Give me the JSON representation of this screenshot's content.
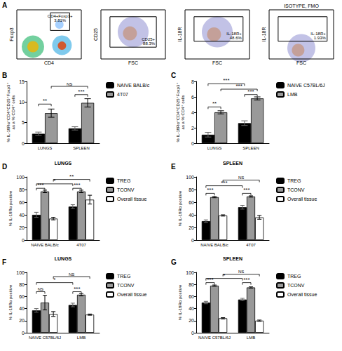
{
  "chart_data": [
    {
      "type": "flow",
      "panel": "A",
      "plots": [
        {
          "xlabel": "CD4",
          "ylabel": "Foxp3",
          "gate": "CD4+Foxp3+",
          "percent": "3.81%"
        },
        {
          "xlabel": "FSC",
          "ylabel": "CD25",
          "gate": "CD25+",
          "percent": "88.3%"
        },
        {
          "xlabel": "FSC",
          "ylabel": "IL-18R",
          "gate": "IL-18R+",
          "percent": "48.6%"
        },
        {
          "title": "ISOTYPE, FMO",
          "xlabel": "FSC",
          "ylabel": "IL-18R",
          "gate": "IL-18R+",
          "percent": "1.93%"
        }
      ]
    },
    {
      "type": "bar",
      "panel": "B",
      "ylabel": "% IL-18Rα⁺CD4⁺CD25⁺Foxp3⁺\nas a % CD4⁺ cells",
      "categories": [
        "LUNGS",
        "SPLEEN"
      ],
      "series": [
        {
          "name": "NAIVE BALB/c",
          "color": "#000000",
          "values": [
            2.3,
            3.6
          ],
          "errors": [
            0.4,
            0.4
          ]
        },
        {
          "name": "4T07",
          "color": "#999999",
          "values": [
            7.3,
            9.8
          ],
          "errors": [
            1.0,
            1.0
          ]
        }
      ],
      "ylim": [
        0,
        15
      ],
      "yticks": [
        0,
        5,
        10,
        15
      ],
      "significance": [
        {
          "from": [
            0,
            0
          ],
          "to": [
            0,
            1
          ],
          "y": 9.5,
          "label": "**"
        },
        {
          "from": [
            1,
            0
          ],
          "to": [
            1,
            1
          ],
          "y": 11.8,
          "label": "***"
        },
        {
          "from": [
            0,
            1
          ],
          "to": [
            1,
            1
          ],
          "y": 13.8,
          "label": "NS"
        }
      ]
    },
    {
      "type": "bar",
      "panel": "C",
      "ylabel": "% IL-18Rα⁺CD4⁺CD25⁺Foxp3⁺\nas a % CD4⁺ cells",
      "categories": [
        "LUNGS",
        "SPLEEN"
      ],
      "series": [
        {
          "name": "NAIVE C57BL/6J",
          "color": "#000000",
          "values": [
            1.1,
            2.6
          ],
          "errors": [
            0.3,
            0.3
          ]
        },
        {
          "name": "LMB",
          "color": "#999999",
          "values": [
            4.0,
            5.8
          ],
          "errors": [
            0.2,
            0.2
          ]
        }
      ],
      "ylim": [
        0,
        8
      ],
      "yticks": [
        0,
        2,
        4,
        6,
        8
      ],
      "significance": [
        {
          "from": [
            0,
            0
          ],
          "to": [
            0,
            1
          ],
          "y": 4.7,
          "label": "**"
        },
        {
          "from": [
            1,
            0
          ],
          "to": [
            1,
            1
          ],
          "y": 6.3,
          "label": "***"
        },
        {
          "from": [
            0,
            1
          ],
          "to": [
            1,
            1
          ],
          "y": 7.0,
          "label": "***"
        },
        {
          "from": [
            0,
            0
          ],
          "to": [
            1,
            0
          ],
          "y": 7.7,
          "label": "***"
        }
      ]
    },
    {
      "type": "bar",
      "panel": "D",
      "title": "LUNGS",
      "ylabel": "% IL-18Rα positive",
      "categories": [
        "NAIVE BALB/c",
        "4T07"
      ],
      "series": [
        {
          "name": "TREG",
          "color": "#000000",
          "values": [
            40,
            53
          ],
          "errors": [
            4,
            3
          ]
        },
        {
          "name": "TCONV",
          "color": "#999999",
          "values": [
            77,
            77
          ],
          "errors": [
            2,
            2
          ]
        },
        {
          "name": "Overall tissue",
          "color": "#ffffff",
          "values": [
            34,
            64
          ],
          "errors": [
            2,
            7
          ]
        }
      ],
      "ylim": [
        0,
        100
      ],
      "yticks": [
        0,
        20,
        40,
        60,
        80,
        100
      ],
      "significance": [
        {
          "from": [
            0,
            0
          ],
          "to": [
            0,
            1
          ],
          "y": 82,
          "label": "***"
        },
        {
          "from": [
            1,
            0
          ],
          "to": [
            1,
            1
          ],
          "y": 82,
          "label": "***"
        },
        {
          "from": [
            0,
            0
          ],
          "to": [
            1,
            0
          ],
          "y": 89,
          "label": "*"
        },
        {
          "from": [
            0,
            2
          ],
          "to": [
            1,
            2
          ],
          "y": 96,
          "label": "**"
        }
      ]
    },
    {
      "type": "bar",
      "panel": "E",
      "title": "SPLEEN",
      "ylabel": "% IL-18Rα positive",
      "categories": [
        "NAIVE BALB/c",
        "4T07"
      ],
      "series": [
        {
          "name": "TREG",
          "color": "#000000",
          "values": [
            30,
            52
          ],
          "errors": [
            2,
            3
          ]
        },
        {
          "name": "TCONV",
          "color": "#999999",
          "values": [
            68,
            69
          ],
          "errors": [
            1,
            1
          ]
        },
        {
          "name": "Overall tissue",
          "color": "#ffffff",
          "values": [
            39,
            36
          ],
          "errors": [
            1,
            3
          ]
        }
      ],
      "ylim": [
        0,
        100
      ],
      "yticks": [
        0,
        20,
        40,
        60,
        80,
        100
      ],
      "significance": [
        {
          "from": [
            0,
            0
          ],
          "to": [
            0,
            1
          ],
          "y": 74,
          "label": "***"
        },
        {
          "from": [
            1,
            0
          ],
          "to": [
            1,
            1
          ],
          "y": 74,
          "label": "***"
        },
        {
          "from": [
            0,
            0
          ],
          "to": [
            1,
            0
          ],
          "y": 86,
          "label": "***"
        },
        {
          "from": [
            0,
            2
          ],
          "to": [
            1,
            2
          ],
          "y": 95,
          "label": "NS"
        }
      ]
    },
    {
      "type": "bar",
      "panel": "F",
      "title": "LUNGS",
      "ylabel": "% IL-18Rα positive",
      "categories": [
        "NAIVE C57BL/6J",
        "LMB"
      ],
      "series": [
        {
          "name": "TREG",
          "color": "#000000",
          "values": [
            37,
            46
          ],
          "errors": [
            3,
            3
          ]
        },
        {
          "name": "TCONV",
          "color": "#999999",
          "values": [
            50,
            63
          ],
          "errors": [
            12,
            2
          ]
        },
        {
          "name": "Overall tissue",
          "color": "#ffffff",
          "values": [
            31,
            30
          ],
          "errors": [
            4,
            1
          ]
        }
      ],
      "ylim": [
        0,
        100
      ],
      "yticks": [
        0,
        20,
        40,
        60,
        80,
        100
      ],
      "significance": [
        {
          "from": [
            0,
            0
          ],
          "to": [
            0,
            1
          ],
          "y": 68,
          "label": "NS"
        },
        {
          "from": [
            1,
            0
          ],
          "to": [
            1,
            1
          ],
          "y": 68,
          "label": "***"
        },
        {
          "from": [
            0,
            0
          ],
          "to": [
            1,
            0
          ],
          "y": 83,
          "label": "*"
        },
        {
          "from": [
            0,
            2
          ],
          "to": [
            1,
            2
          ],
          "y": 93,
          "label": "NS"
        }
      ]
    },
    {
      "type": "bar",
      "panel": "G",
      "title": "SPLEEN",
      "ylabel": "% IL-18Rα positive",
      "categories": [
        "NAIVE C57BL/6J",
        "LMB"
      ],
      "series": [
        {
          "name": "TREG",
          "color": "#000000",
          "values": [
            50,
            55
          ],
          "errors": [
            2,
            2
          ]
        },
        {
          "name": "TCONV",
          "color": "#999999",
          "values": [
            78,
            75
          ],
          "errors": [
            1,
            1
          ]
        },
        {
          "name": "Overall tissue",
          "color": "#ffffff",
          "values": [
            24,
            20
          ],
          "errors": [
            1,
            1
          ]
        }
      ],
      "ylim": [
        0,
        100
      ],
      "yticks": [
        0,
        20,
        40,
        60,
        80,
        100
      ],
      "significance": [
        {
          "from": [
            0,
            0
          ],
          "to": [
            0,
            1
          ],
          "y": 83,
          "label": "***"
        },
        {
          "from": [
            1,
            0
          ],
          "to": [
            1,
            1
          ],
          "y": 83,
          "label": "***"
        },
        {
          "from": [
            0,
            0
          ],
          "to": [
            1,
            0
          ],
          "y": 90,
          "label": "*"
        },
        {
          "from": [
            0,
            2
          ],
          "to": [
            1,
            2
          ],
          "y": 97,
          "label": "NS"
        }
      ]
    }
  ]
}
